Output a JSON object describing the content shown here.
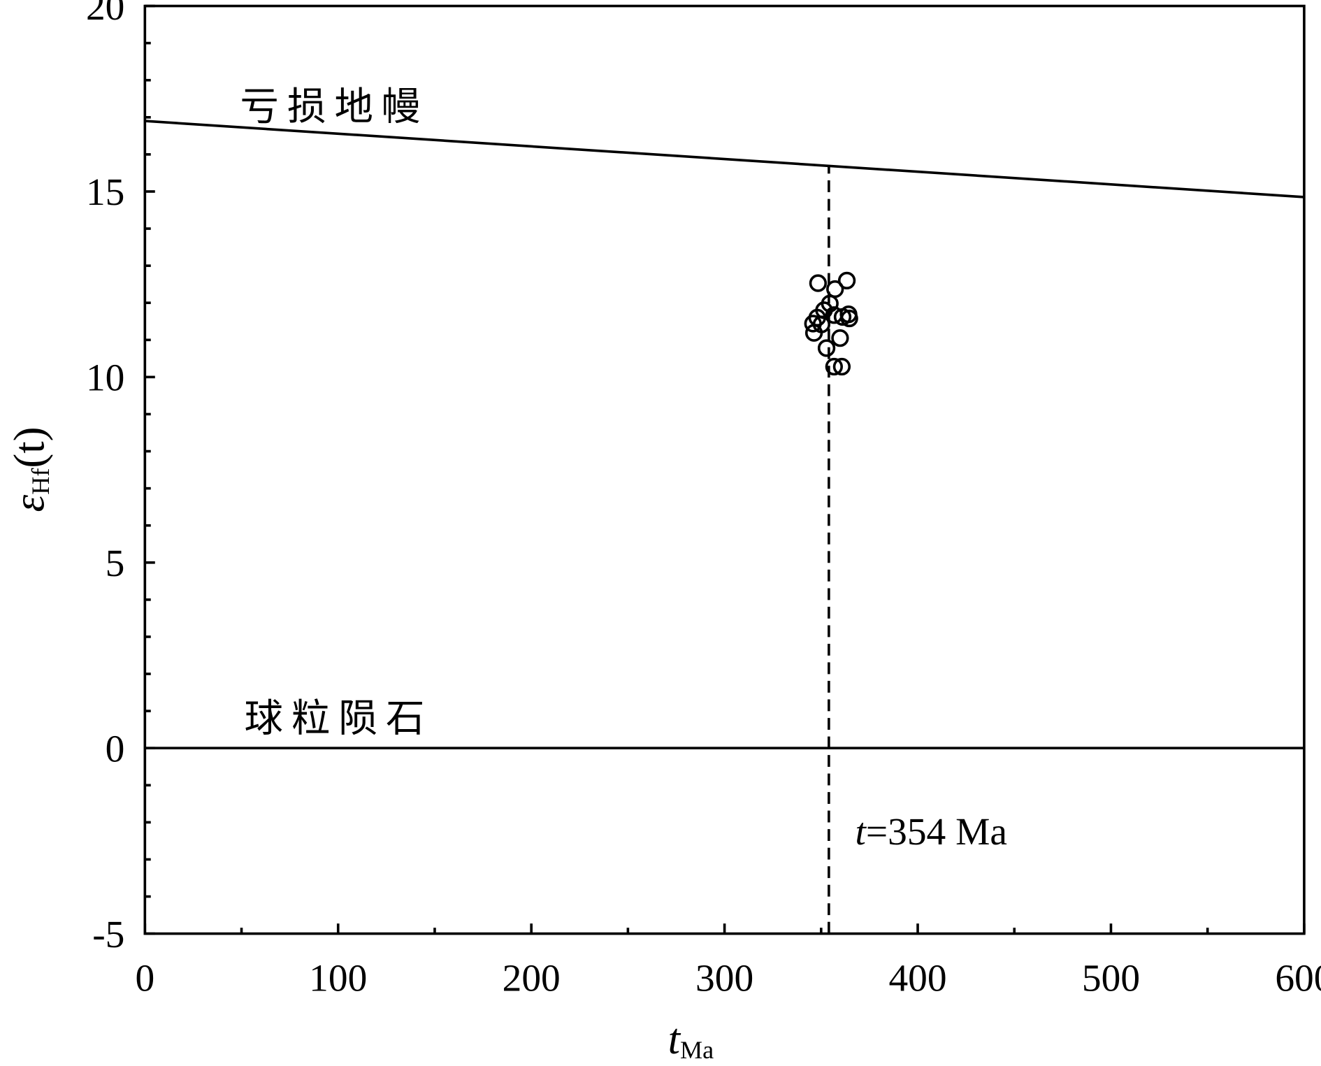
{
  "chart_data": {
    "type": "scatter",
    "xlabel": [
      "t",
      "Ma"
    ],
    "ylabel": [
      "ε",
      "Hf",
      "(t)"
    ],
    "x": [
      348.4,
      363.3,
      357.2,
      354.5,
      351.5,
      348,
      345.8,
      346.3,
      356.7,
      361.1,
      364.2,
      364.6,
      359.8,
      352.8,
      356.7,
      360.7,
      350.2
    ],
    "values": [
      12.53,
      12.6,
      12.37,
      11.98,
      11.8,
      11.6,
      11.44,
      11.19,
      11.67,
      11.62,
      11.69,
      11.58,
      11.05,
      10.78,
      10.28,
      10.28,
      11.42
    ],
    "color": "#000000",
    "lines": [
      {
        "label": "亏损地幔",
        "x": [
          0,
          600
        ],
        "values": [
          16.9,
          14.85
        ]
      },
      {
        "label": "球粒陨石",
        "x": [
          0,
          600
        ],
        "values": [
          0,
          0
        ]
      }
    ],
    "vline": {
      "x": 354,
      "label": [
        "t",
        "=354 Ma"
      ]
    },
    "xlim": [
      0,
      600
    ],
    "ylim": [
      -5,
      20
    ],
    "xticks": [
      0,
      100,
      200,
      300,
      400,
      500,
      600
    ],
    "yticks": [
      -5,
      0,
      5,
      10,
      15,
      20
    ],
    "xminorticks": [
      50,
      150,
      250,
      350,
      450,
      550
    ],
    "yminorticks": [
      -4,
      -3,
      -2,
      -1,
      1,
      2,
      3,
      4,
      6,
      7,
      8,
      9,
      11,
      12,
      13,
      14,
      16,
      17,
      18,
      19
    ]
  }
}
